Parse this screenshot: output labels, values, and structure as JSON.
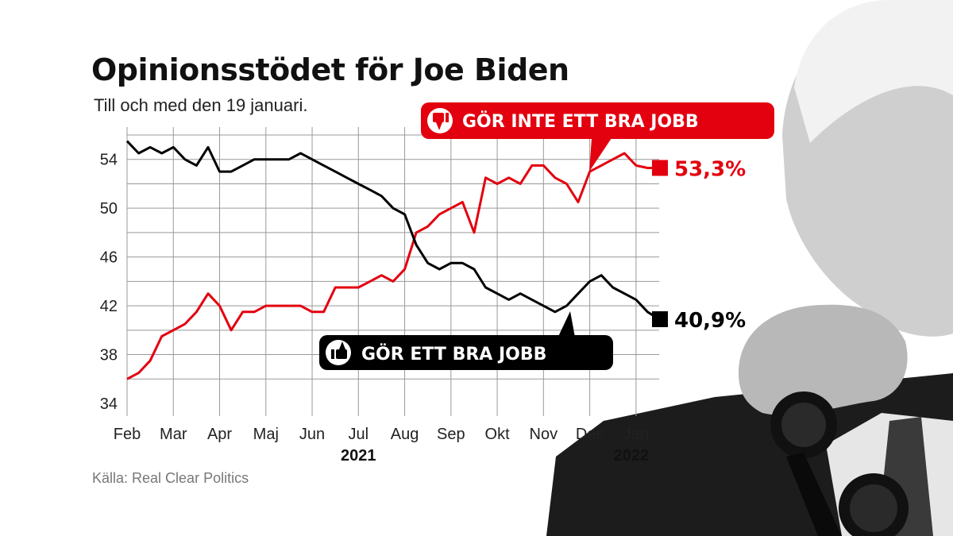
{
  "title": "Opinionsstödet för Joe Biden",
  "subtitle": "Till och med den 19 januari.",
  "source": "Källa: Real Clear Politics",
  "colors": {
    "disapprove": "#e3000f",
    "approve": "#000000",
    "grid": "#999999"
  },
  "icons": {
    "disapprove": "thumbs-down-icon",
    "approve": "thumbs-up-icon"
  },
  "chart_data": {
    "type": "line",
    "title": "Opinionsstödet för Joe Biden",
    "xlabel": "",
    "ylabel": "",
    "ylim": [
      34,
      56
    ],
    "yticks": [
      34,
      38,
      42,
      46,
      50,
      54
    ],
    "x_tick_labels": [
      "Feb",
      "Mar",
      "Apr",
      "Maj",
      "Jun",
      "Jul",
      "Aug",
      "Sep",
      "Okt",
      "Nov",
      "Dec",
      "Jan"
    ],
    "x_year_labels": [
      "2021",
      "2022"
    ],
    "grid": true,
    "legend": "callouts",
    "x": [
      0,
      0.25,
      0.5,
      0.75,
      1,
      1.25,
      1.5,
      1.75,
      2,
      2.25,
      2.5,
      2.75,
      3,
      3.25,
      3.5,
      3.75,
      4,
      4.25,
      4.5,
      4.75,
      5,
      5.25,
      5.5,
      5.75,
      6,
      6.25,
      6.5,
      6.75,
      7,
      7.25,
      7.5,
      7.75,
      8,
      8.25,
      8.5,
      8.75,
      9,
      9.25,
      9.5,
      9.75,
      10,
      10.25,
      10.5,
      10.75,
      11,
      11.25,
      11.5
    ],
    "series": [
      {
        "name": "GÖR INTE ETT BRA JOBB",
        "end_label": "53,3%",
        "values": [
          36.0,
          36.5,
          37.5,
          39.5,
          40.0,
          40.5,
          41.5,
          43.0,
          42.0,
          40.0,
          41.5,
          41.5,
          42.0,
          42.0,
          42.0,
          42.0,
          41.5,
          41.5,
          43.5,
          43.5,
          43.5,
          44.0,
          44.5,
          44.0,
          45.0,
          48.0,
          48.5,
          49.5,
          50.0,
          50.5,
          48.0,
          52.5,
          52.0,
          52.5,
          52.0,
          53.5,
          53.5,
          52.5,
          52.0,
          50.5,
          53.0,
          53.5,
          54.0,
          54.5,
          53.5,
          53.3,
          53.3
        ]
      },
      {
        "name": "GÖR ETT BRA JOBB",
        "end_label": "40,9%",
        "values": [
          55.5,
          54.5,
          55.0,
          54.5,
          55.0,
          54.0,
          53.5,
          55.0,
          53.0,
          53.0,
          53.5,
          54.0,
          54.0,
          54.0,
          54.0,
          54.5,
          54.0,
          53.5,
          53.0,
          52.5,
          52.0,
          51.5,
          51.0,
          50.0,
          49.5,
          47.0,
          45.5,
          45.0,
          45.5,
          45.5,
          45.0,
          43.5,
          43.0,
          42.5,
          43.0,
          42.5,
          42.0,
          41.5,
          42.0,
          43.0,
          44.0,
          44.5,
          43.5,
          43.0,
          42.5,
          41.5,
          40.9
        ]
      }
    ]
  }
}
